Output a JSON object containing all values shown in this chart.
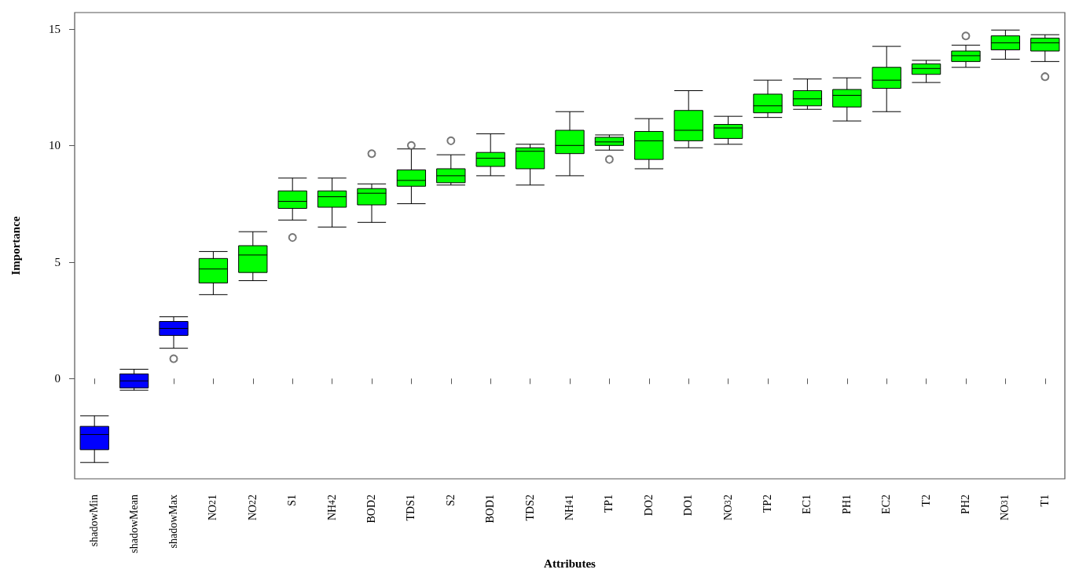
{
  "chart_data": {
    "type": "box",
    "xlabel": "Attributes",
    "ylabel": "Importance",
    "categories": [
      "shadowMin",
      "shadowMean",
      "shadowMax",
      "NO$_{2}$1",
      "NO$_{2}$2",
      "S1",
      "NH$_{4}$2",
      "BOD2",
      "TDS1",
      "S2",
      "BOD1",
      "TDS2",
      "NH$_{4}$1",
      "TP1",
      "DO2",
      "DO1",
      "NO$_{3}$2",
      "TP2",
      "EC1",
      "PH1",
      "EC2",
      "T2",
      "PH2",
      "NO$_{3}$1",
      "T1"
    ],
    "colors": [
      "#0000ff",
      "#0000ff",
      "#0000ff",
      "#00ff00",
      "#00ff00",
      "#00ff00",
      "#00ff00",
      "#00ff00",
      "#00ff00",
      "#00ff00",
      "#00ff00",
      "#00ff00",
      "#00ff00",
      "#00ff00",
      "#00ff00",
      "#00ff00",
      "#00ff00",
      "#00ff00",
      "#00ff00",
      "#00ff00",
      "#00ff00",
      "#00ff00",
      "#00ff00",
      "#00ff00",
      "#00ff00"
    ],
    "boxes": [
      {
        "low": -3.6,
        "q1": -3.05,
        "median": -2.4,
        "q3": -2.05,
        "high": -1.6
      },
      {
        "low": -0.5,
        "q1": -0.4,
        "median": -0.1,
        "q3": 0.2,
        "high": 0.4
      },
      {
        "low": 1.3,
        "q1": 1.85,
        "median": 2.15,
        "q3": 2.45,
        "high": 2.65,
        "outliers": [
          0.85
        ]
      },
      {
        "low": 3.6,
        "q1": 4.1,
        "median": 4.7,
        "q3": 5.15,
        "high": 5.45
      },
      {
        "low": 4.2,
        "q1": 4.55,
        "median": 5.3,
        "q3": 5.7,
        "high": 6.3
      },
      {
        "low": 6.8,
        "q1": 7.3,
        "median": 7.6,
        "q3": 8.05,
        "high": 8.6,
        "outliers": [
          6.05
        ]
      },
      {
        "low": 6.5,
        "q1": 7.35,
        "median": 7.8,
        "q3": 8.05,
        "high": 8.6
      },
      {
        "low": 6.7,
        "q1": 7.45,
        "median": 7.95,
        "q3": 8.15,
        "high": 8.35,
        "outliers": [
          9.65
        ]
      },
      {
        "low": 7.5,
        "q1": 8.25,
        "median": 8.5,
        "q3": 8.95,
        "high": 9.85,
        "outliers": [
          10.0
        ]
      },
      {
        "low": 8.3,
        "q1": 8.4,
        "median": 8.7,
        "q3": 9.0,
        "high": 9.6,
        "outliers": [
          10.2
        ]
      },
      {
        "low": 8.7,
        "q1": 9.1,
        "median": 9.45,
        "q3": 9.7,
        "high": 10.5
      },
      {
        "low": 8.3,
        "q1": 9.0,
        "median": 9.75,
        "q3": 9.9,
        "high": 10.05
      },
      {
        "low": 8.7,
        "q1": 9.65,
        "median": 10.0,
        "q3": 10.65,
        "high": 11.45
      },
      {
        "low": 9.8,
        "q1": 10.0,
        "median": 10.15,
        "q3": 10.35,
        "high": 10.45,
        "outliers": [
          9.4
        ]
      },
      {
        "low": 9.0,
        "q1": 9.4,
        "median": 10.2,
        "q3": 10.6,
        "high": 11.15
      },
      {
        "low": 9.9,
        "q1": 10.2,
        "median": 10.65,
        "q3": 11.5,
        "high": 12.35
      },
      {
        "low": 10.05,
        "q1": 10.3,
        "median": 10.75,
        "q3": 10.9,
        "high": 11.25
      },
      {
        "low": 11.2,
        "q1": 11.4,
        "median": 11.7,
        "q3": 12.2,
        "high": 12.8
      },
      {
        "low": 11.55,
        "q1": 11.7,
        "median": 12.0,
        "q3": 12.35,
        "high": 12.85
      },
      {
        "low": 11.05,
        "q1": 11.65,
        "median": 12.15,
        "q3": 12.4,
        "high": 12.9
      },
      {
        "low": 11.45,
        "q1": 12.45,
        "median": 12.8,
        "q3": 13.35,
        "high": 14.25
      },
      {
        "low": 12.7,
        "q1": 13.05,
        "median": 13.3,
        "q3": 13.5,
        "high": 13.65
      },
      {
        "low": 13.35,
        "q1": 13.6,
        "median": 13.85,
        "q3": 14.05,
        "high": 14.3,
        "outliers": [
          14.7
        ]
      },
      {
        "low": 13.7,
        "q1": 14.1,
        "median": 14.4,
        "q3": 14.7,
        "high": 14.95
      },
      {
        "low": 13.6,
        "q1": 14.05,
        "median": 14.4,
        "q3": 14.6,
        "high": 14.75,
        "outliers": [
          12.95
        ]
      }
    ],
    "ylim": [
      -4.3,
      15.7
    ],
    "yticks": [
      0,
      5,
      10,
      15
    ],
    "grid": false
  }
}
